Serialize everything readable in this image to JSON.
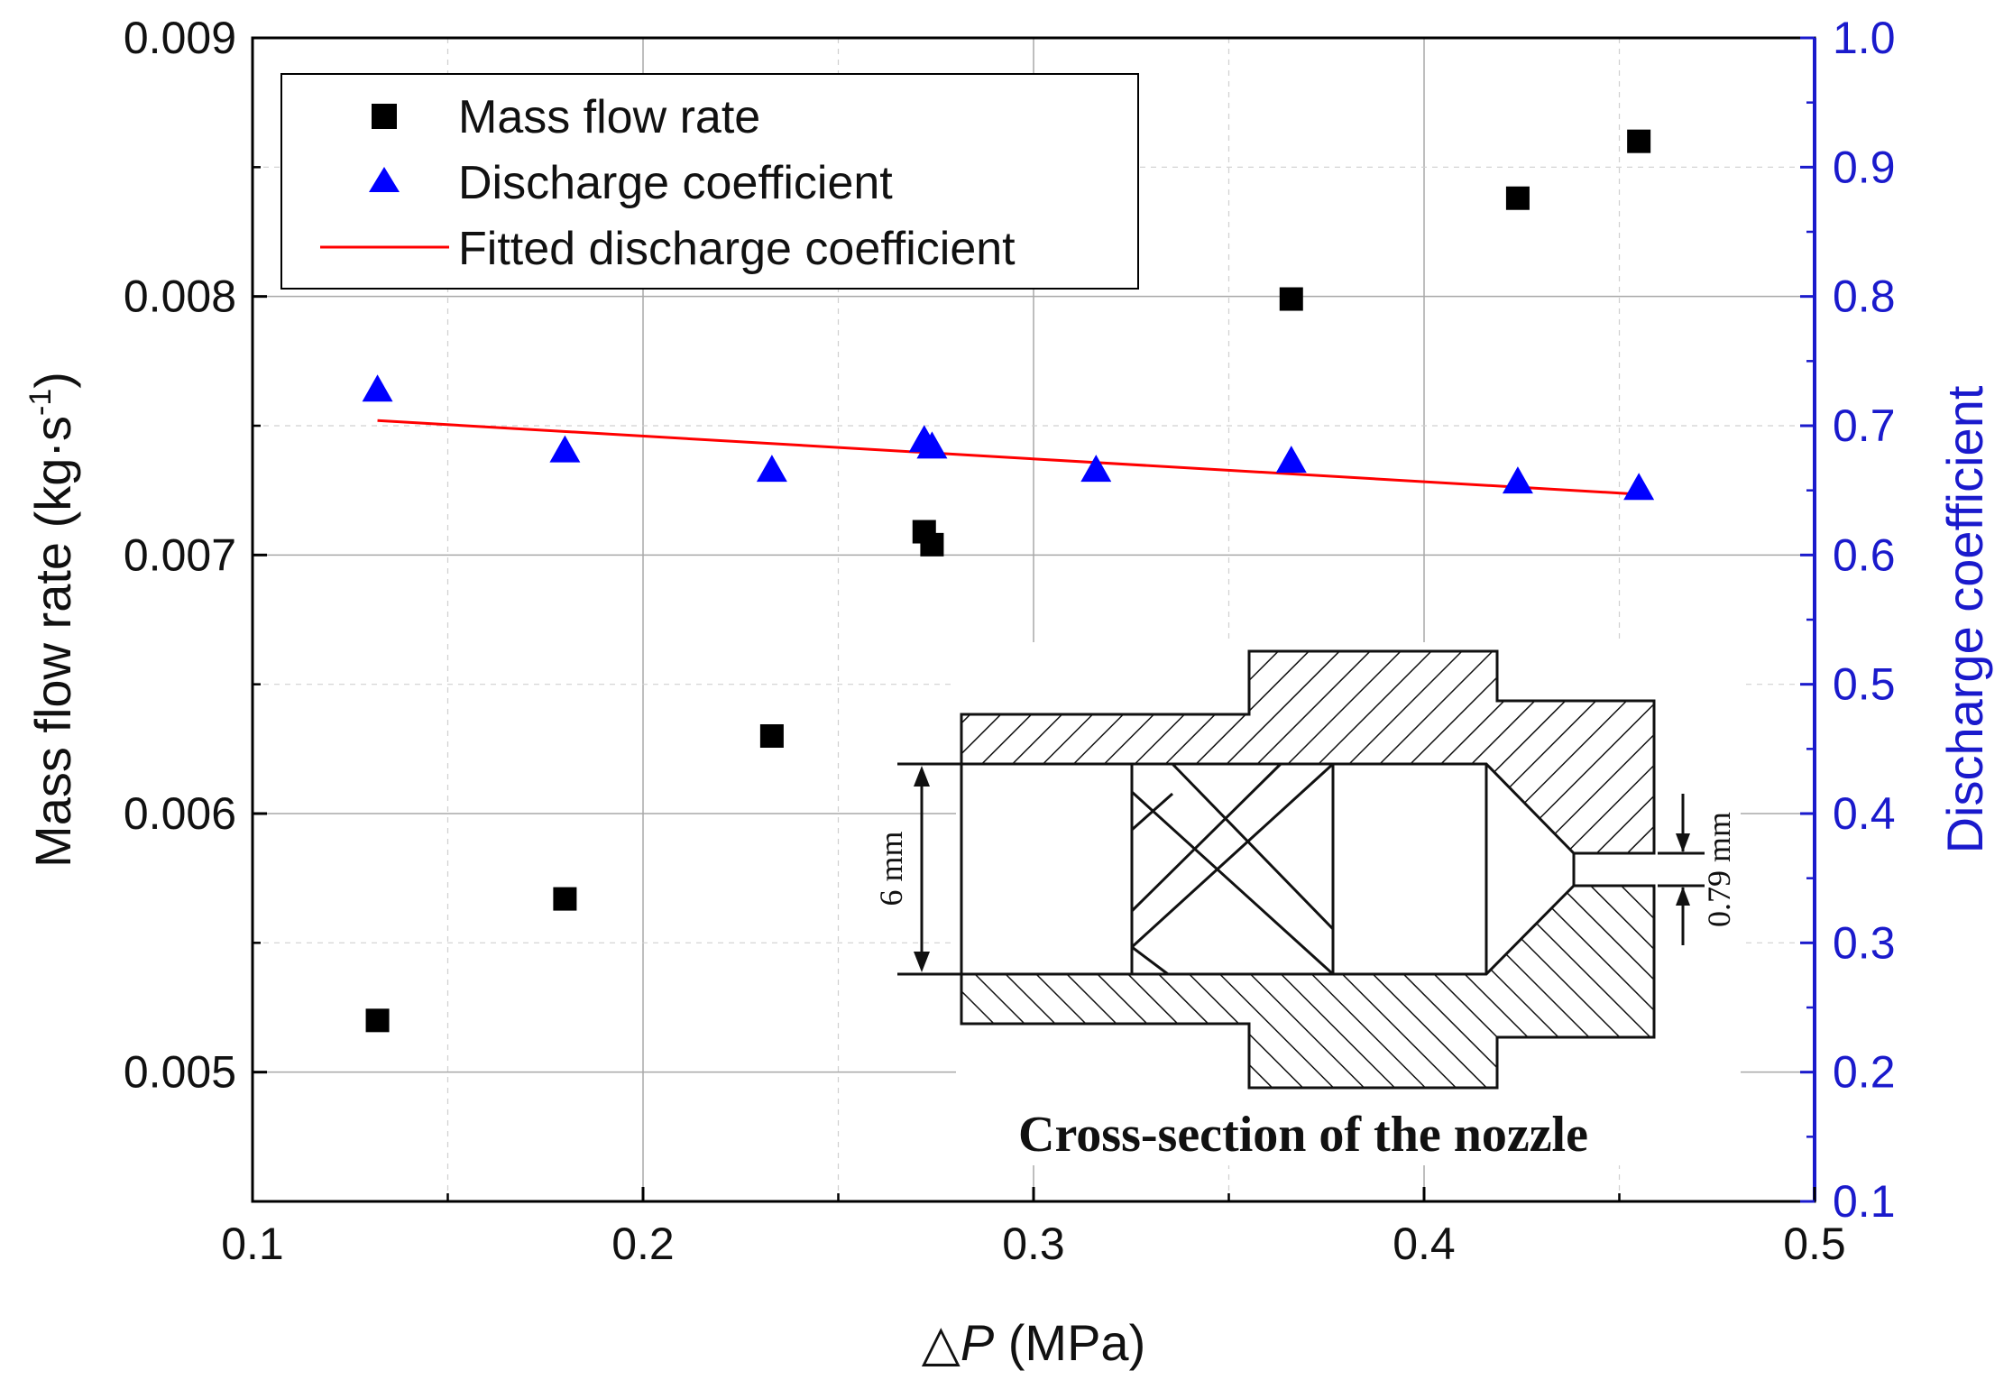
{
  "chart_data": {
    "type": "scatter",
    "x_label_symbol": "△",
    "x_label_var": "P",
    "x_label_unit": " (MPa)",
    "y_label_left": "Mass flow rate (kg·s",
    "y_label_left_sup": "-1",
    "y_label_left_close": ")",
    "y_label_right": "Discharge coefficient",
    "xlim": [
      0.1,
      0.5
    ],
    "ylim_left": [
      0.0045,
      0.009
    ],
    "ylim_right": [
      0.1,
      1.0
    ],
    "x_ticks": [
      "0.1",
      "0.2",
      "0.3",
      "0.4",
      "0.5"
    ],
    "y_ticks_left": [
      "0.005",
      "0.006",
      "0.007",
      "0.008",
      "0.009"
    ],
    "y_ticks_right": [
      "0.1",
      "0.2",
      "0.3",
      "0.4",
      "0.5",
      "0.6",
      "0.7",
      "0.8",
      "0.9",
      "1.0"
    ],
    "grid": true,
    "legend_position": "top-left",
    "series": [
      {
        "name": "Mass flow rate",
        "axis": "left",
        "marker": "square",
        "color": "#000000",
        "points": [
          [
            0.132,
            0.0052
          ],
          [
            0.18,
            0.00567
          ],
          [
            0.233,
            0.0063
          ],
          [
            0.272,
            0.00709
          ],
          [
            0.274,
            0.00704
          ],
          [
            0.366,
            0.00799
          ],
          [
            0.424,
            0.00838
          ],
          [
            0.455,
            0.0086
          ]
        ]
      },
      {
        "name": "Discharge coefficient",
        "axis": "right",
        "marker": "triangle",
        "color": "#0000ff",
        "points": [
          [
            0.132,
            0.727
          ],
          [
            0.18,
            0.68
          ],
          [
            0.233,
            0.665
          ],
          [
            0.272,
            0.688
          ],
          [
            0.274,
            0.683
          ],
          [
            0.316,
            0.665
          ],
          [
            0.366,
            0.672
          ],
          [
            0.424,
            0.656
          ],
          [
            0.455,
            0.651
          ]
        ]
      },
      {
        "name": "Fitted discharge coefficient",
        "axis": "right",
        "marker": "line",
        "color": "#ff0000",
        "points": [
          [
            0.132,
            0.704
          ],
          [
            0.455,
            0.647
          ]
        ]
      }
    ],
    "inset": {
      "title": "Cross-section of the nozzle",
      "dim_inlet": "6 mm",
      "dim_outlet": "0.79 mm"
    }
  }
}
